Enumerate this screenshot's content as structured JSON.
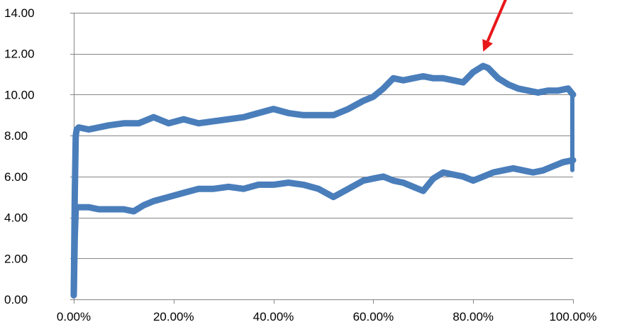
{
  "chart_data": {
    "type": "line",
    "title": "",
    "xlabel": "",
    "ylabel": "",
    "xlim": [
      0,
      1.0
    ],
    "ylim": [
      0,
      14
    ],
    "x_ticks": [
      {
        "value": 0.0,
        "label": "0.00%"
      },
      {
        "value": 0.2,
        "label": "20.00%"
      },
      {
        "value": 0.4,
        "label": "40.00%"
      },
      {
        "value": 0.6,
        "label": "60.00%"
      },
      {
        "value": 0.8,
        "label": "80.00%"
      },
      {
        "value": 1.0,
        "label": "100.00%"
      }
    ],
    "y_ticks": [
      {
        "value": 0,
        "label": "0.00"
      },
      {
        "value": 2,
        "label": "2.00"
      },
      {
        "value": 4,
        "label": "4.00"
      },
      {
        "value": 6,
        "label": "6.00"
      },
      {
        "value": 8,
        "label": "8.00"
      },
      {
        "value": 10,
        "label": "10.00"
      },
      {
        "value": 12,
        "label": "12.00"
      },
      {
        "value": 14,
        "label": "14.00"
      }
    ],
    "grid": "horizontal",
    "legend": "none",
    "colors": {
      "series": "#4a7ebb",
      "annotation_arrow": "#e8171b",
      "gridline": "#868686",
      "axis": "#868686"
    },
    "series": [
      {
        "line_width": 9,
        "x": [
          0.0,
          0.002,
          0.004,
          0.006,
          0.01,
          0.03,
          0.05,
          0.07,
          0.1,
          0.13,
          0.16,
          0.19,
          0.22,
          0.25,
          0.28,
          0.31,
          0.34,
          0.37,
          0.4,
          0.43,
          0.46,
          0.49,
          0.52,
          0.55,
          0.58,
          0.6,
          0.62,
          0.64,
          0.66,
          0.68,
          0.7,
          0.72,
          0.74,
          0.76,
          0.78,
          0.8,
          0.82,
          0.83,
          0.85,
          0.87,
          0.89,
          0.91,
          0.93,
          0.95,
          0.97,
          0.99,
          1.0
        ],
        "values": [
          0.2,
          5.0,
          8.0,
          8.3,
          8.4,
          8.3,
          8.4,
          8.5,
          8.6,
          8.6,
          8.9,
          8.6,
          8.8,
          8.6,
          8.7,
          8.8,
          8.9,
          9.1,
          9.3,
          9.1,
          9.0,
          9.0,
          9.0,
          9.3,
          9.7,
          9.9,
          10.3,
          10.8,
          10.7,
          10.8,
          10.9,
          10.8,
          10.8,
          10.7,
          10.6,
          11.1,
          11.4,
          11.3,
          10.8,
          10.5,
          10.3,
          10.2,
          10.1,
          10.2,
          10.2,
          10.3,
          10.0
        ]
      },
      {
        "line_width": 9,
        "x": [
          0.0,
          0.002,
          0.004,
          0.006,
          0.01,
          0.03,
          0.05,
          0.07,
          0.1,
          0.12,
          0.14,
          0.16,
          0.19,
          0.22,
          0.25,
          0.28,
          0.31,
          0.34,
          0.37,
          0.4,
          0.43,
          0.46,
          0.49,
          0.52,
          0.55,
          0.58,
          0.6,
          0.62,
          0.64,
          0.66,
          0.68,
          0.7,
          0.72,
          0.74,
          0.76,
          0.78,
          0.8,
          0.82,
          0.84,
          0.86,
          0.88,
          0.9,
          0.92,
          0.94,
          0.96,
          0.98,
          1.0
        ],
        "values": [
          0.2,
          3.0,
          4.4,
          4.5,
          4.5,
          4.5,
          4.4,
          4.4,
          4.4,
          4.3,
          4.6,
          4.8,
          5.0,
          5.2,
          5.4,
          5.4,
          5.5,
          5.4,
          5.6,
          5.6,
          5.7,
          5.6,
          5.4,
          5.0,
          5.4,
          5.8,
          5.9,
          6.0,
          5.8,
          5.7,
          5.5,
          5.3,
          5.9,
          6.2,
          6.1,
          6.0,
          5.8,
          6.0,
          6.2,
          6.3,
          6.4,
          6.3,
          6.2,
          6.3,
          6.5,
          6.7,
          6.8
        ]
      }
    ],
    "annotations": [
      {
        "type": "arrow",
        "color": "#e8171b",
        "from": [
          0.88,
          15.5
        ],
        "to": [
          0.82,
          12.1
        ]
      }
    ]
  }
}
